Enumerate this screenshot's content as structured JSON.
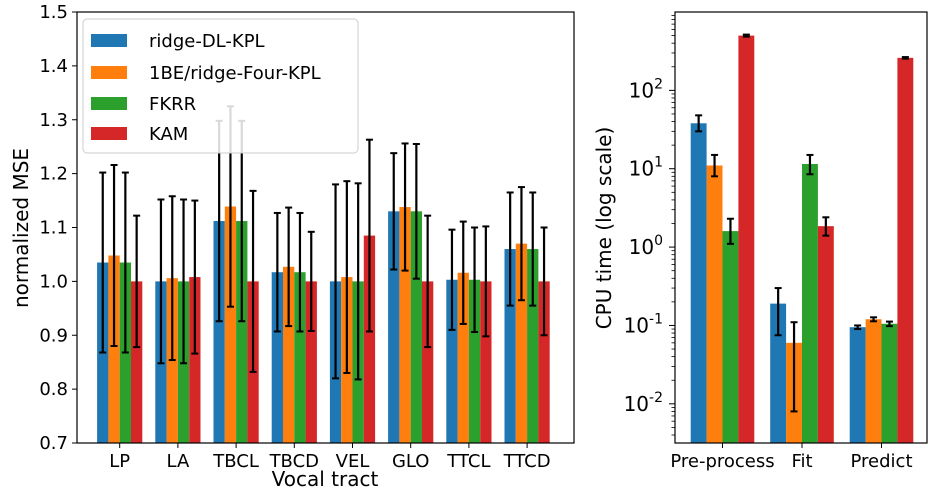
{
  "colors": {
    "blue": "#1f77b4",
    "orange": "#ff7f0e",
    "green": "#2ca02c",
    "red": "#d62728"
  },
  "chart_data": [
    {
      "type": "bar",
      "title": "",
      "xlabel": "Vocal tract",
      "ylabel": "normalized MSE",
      "ylim": [
        0.7,
        1.5
      ],
      "yticks": [
        "0.7",
        "0.8",
        "0.9",
        "1.0",
        "1.1",
        "1.2",
        "1.3",
        "1.4",
        "1.5"
      ],
      "categories": [
        "LP",
        "LA",
        "TBCL",
        "TBCD",
        "VEL",
        "GLO",
        "TTCL",
        "TTCD"
      ],
      "legend_position": "top-left",
      "series": [
        {
          "name": "ridge-DL-KPL",
          "color": "#1f77b4",
          "values": [
            1.035,
            1.0,
            1.112,
            1.017,
            1.0,
            1.13,
            1.003,
            1.06
          ],
          "err": [
            0.167,
            0.152,
            0.186,
            0.11,
            0.18,
            0.108,
            0.093,
            0.105
          ]
        },
        {
          "name": "1BE/ridge-Four-KPL",
          "color": "#ff7f0e",
          "values": [
            1.048,
            1.006,
            1.139,
            1.027,
            1.008,
            1.138,
            1.016,
            1.07
          ],
          "err": [
            0.168,
            0.152,
            0.186,
            0.11,
            0.178,
            0.118,
            0.095,
            0.105
          ]
        },
        {
          "name": "FKRR",
          "color": "#2ca02c",
          "values": [
            1.035,
            1.0,
            1.112,
            1.017,
            1.0,
            1.13,
            1.003,
            1.06
          ],
          "err": [
            0.167,
            0.152,
            0.186,
            0.11,
            0.182,
            0.125,
            0.097,
            0.105
          ]
        },
        {
          "name": "KAM",
          "color": "#d62728",
          "values": [
            1.0,
            1.008,
            1.0,
            1.0,
            1.085,
            1.0,
            1.0,
            1.0
          ],
          "err": [
            0.122,
            0.142,
            0.168,
            0.092,
            0.178,
            0.122,
            0.102,
            0.1
          ]
        }
      ]
    },
    {
      "type": "bar",
      "title": "",
      "xlabel": "",
      "ylabel": "CPU time (log scale)",
      "yscale": "log",
      "ylim_log10": [
        -2.5,
        3.0
      ],
      "yticks": [
        {
          "base": "10",
          "exp": "-2",
          "log": -2
        },
        {
          "base": "10",
          "exp": "-1",
          "log": -1
        },
        {
          "base": "10",
          "exp": "0",
          "log": 0
        },
        {
          "base": "10",
          "exp": "1",
          "log": 1
        },
        {
          "base": "10",
          "exp": "2",
          "log": 2
        }
      ],
      "categories": [
        "Pre-process",
        "Fit",
        "Predict"
      ],
      "series": [
        {
          "name": "ridge-DL-KPL",
          "color": "#1f77b4",
          "values": [
            38,
            0.19,
            0.095
          ],
          "lo": [
            30,
            0.075,
            0.09
          ],
          "hi": [
            48,
            0.3,
            0.1
          ]
        },
        {
          "name": "1BE/ridge-Four-KPL",
          "color": "#ff7f0e",
          "values": [
            11,
            0.06,
            0.12
          ],
          "lo": [
            8,
            0.008,
            0.113
          ],
          "hi": [
            15,
            0.11,
            0.127
          ]
        },
        {
          "name": "FKRR",
          "color": "#2ca02c",
          "values": [
            1.6,
            null,
            0.105
          ],
          "lo": [
            1.1,
            null,
            0.098
          ],
          "hi": [
            2.3,
            null,
            0.112
          ],
          "fit_extra": {
            "value": 11.5,
            "lo": 8.5,
            "hi": 15
          }
        },
        {
          "name": "KAM",
          "color": "#d62728",
          "values": [
            500,
            1.85,
            260
          ],
          "lo": [
            485,
            1.4,
            254
          ],
          "hi": [
            515,
            2.4,
            266
          ]
        }
      ]
    }
  ]
}
